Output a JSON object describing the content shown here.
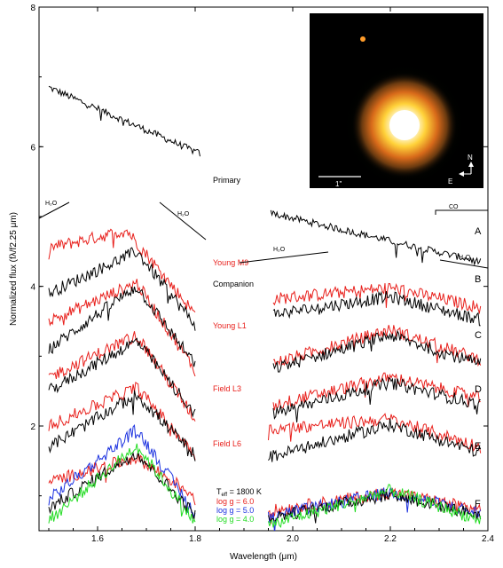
{
  "chart_data": {
    "type": "line",
    "xlabel": "Wavelength (μm)",
    "ylabel": "Normalized flux (fλ/f2.25 μm)",
    "xlim": [
      1.48,
      2.4
    ],
    "ylim": [
      0.5,
      8.0
    ],
    "x_ticks": [
      "1.6",
      "1.8",
      "2.0",
      "2.2",
      "2.4"
    ],
    "y_ticks": [
      "2",
      "4",
      "6",
      "8"
    ],
    "colors": {
      "black": "#000000",
      "red": "#e8201c",
      "blue": "#1c32e0",
      "green": "#22dc22"
    },
    "labels": {
      "primary": "Primary",
      "young_m9": "Young M9",
      "companion": "Companion",
      "young_l1": "Young L1",
      "field_l3": "Field L3",
      "field_l6": "Field L6",
      "teff": "T",
      "teff_sub": "eff",
      "teff_val": " = 1800 K",
      "logg6": "log g = 6.0",
      "logg5": "log g = 5.0",
      "logg4": "log g = 4.0",
      "h2o": "H₂O",
      "co": "CO",
      "A": "A",
      "B": "B",
      "C": "C",
      "D": "D",
      "E": "E",
      "F": "F"
    },
    "inset": {
      "scale_label": "1\"",
      "north": "N",
      "east": "E"
    },
    "series": [
      {
        "name": "Primary",
        "color": "black",
        "segments": [
          {
            "x": [
              1.5,
              1.81
            ],
            "y": [
              6.85,
              5.9
            ]
          },
          {
            "x": [
              1.955,
              2.385
            ],
            "y": [
              5.05,
              4.35
            ]
          }
        ]
      },
      {
        "name": "Young M9",
        "color": "red",
        "segments": [
          {
            "x": [
              1.5,
              1.66,
              1.8
            ],
            "y": [
              4.55,
              4.8,
              3.6
            ]
          },
          {
            "x": [
              1.96,
              2.2,
              2.385
            ],
            "y": [
              3.82,
              3.98,
              3.7
            ]
          }
        ]
      },
      {
        "name": "Companion",
        "color": "black",
        "segments": [
          {
            "x": [
              1.5,
              1.68,
              1.8
            ],
            "y": [
              3.9,
              4.5,
              3.45
            ]
          },
          {
            "x": [
              1.96,
              2.2,
              2.385
            ],
            "y": [
              3.6,
              3.85,
              3.52
            ]
          }
        ]
      },
      {
        "name": "Young L1",
        "color": "red",
        "segments": [
          {
            "x": [
              1.5,
              1.68,
              1.8
            ],
            "y": [
              3.5,
              4.05,
              2.8
            ]
          },
          {
            "x": [
              1.96,
              2.2,
              2.385
            ],
            "y": [
              2.9,
              3.38,
              2.95
            ]
          }
        ]
      },
      {
        "name": "Companion",
        "color": "black",
        "segments": [
          {
            "x": [
              1.5,
              1.68,
              1.8
            ],
            "y": [
              3.1,
              4.0,
              2.88
            ]
          },
          {
            "x": [
              1.96,
              2.2,
              2.385
            ],
            "y": [
              2.82,
              3.3,
              2.88
            ]
          }
        ]
      },
      {
        "name": "Field L3",
        "color": "red",
        "segments": [
          {
            "x": [
              1.5,
              1.68,
              1.8
            ],
            "y": [
              2.7,
              3.3,
              2.1
            ]
          },
          {
            "x": [
              1.96,
              2.2,
              2.385
            ],
            "y": [
              2.3,
              2.7,
              2.4
            ]
          }
        ]
      },
      {
        "name": "Companion",
        "color": "black",
        "segments": [
          {
            "x": [
              1.5,
              1.68,
              1.8
            ],
            "y": [
              2.5,
              3.22,
              2.18
            ]
          },
          {
            "x": [
              1.96,
              2.2,
              2.385
            ],
            "y": [
              2.18,
              2.62,
              2.3
            ]
          }
        ]
      },
      {
        "name": "Field L6",
        "color": "red",
        "segments": [
          {
            "x": [
              1.5,
              1.68,
              1.8
            ],
            "y": [
              2.0,
              2.55,
              1.6
            ]
          },
          {
            "x": [
              1.95,
              2.2,
              2.385
            ],
            "y": [
              1.95,
              2.1,
              1.7
            ]
          }
        ]
      },
      {
        "name": "Companion",
        "color": "black",
        "segments": [
          {
            "x": [
              1.5,
              1.68,
              1.8
            ],
            "y": [
              1.7,
              2.45,
              1.58
            ]
          },
          {
            "x": [
              1.95,
              2.2,
              2.385
            ],
            "y": [
              1.55,
              2.02,
              1.62
            ]
          }
        ]
      },
      {
        "name": "log g = 6.0",
        "color": "red",
        "segments": [
          {
            "x": [
              1.5,
              1.68,
              1.8
            ],
            "y": [
              1.2,
              1.55,
              1.0
            ]
          },
          {
            "x": [
              1.95,
              2.2,
              2.385
            ],
            "y": [
              0.78,
              1.05,
              0.8
            ]
          }
        ]
      },
      {
        "name": "log g = 5.0",
        "color": "blue",
        "segments": [
          {
            "x": [
              1.5,
              1.68,
              1.8
            ],
            "y": [
              0.95,
              1.95,
              0.75
            ]
          },
          {
            "x": [
              1.95,
              2.2,
              2.385
            ],
            "y": [
              0.7,
              1.05,
              0.75
            ]
          }
        ]
      },
      {
        "name": "Companion",
        "color": "black",
        "segments": [
          {
            "x": [
              1.5,
              1.68,
              1.8
            ],
            "y": [
              0.82,
              1.62,
              0.72
            ]
          },
          {
            "x": [
              1.95,
              2.2,
              2.385
            ],
            "y": [
              0.68,
              1.02,
              0.72
            ]
          }
        ]
      },
      {
        "name": "log g = 4.0",
        "color": "green",
        "segments": [
          {
            "x": [
              1.5,
              1.68,
              1.8
            ],
            "y": [
              0.65,
              1.72,
              0.62
            ]
          },
          {
            "x": [
              1.95,
              2.2,
              2.385
            ],
            "y": [
              0.58,
              1.08,
              0.65
            ]
          }
        ]
      }
    ]
  }
}
